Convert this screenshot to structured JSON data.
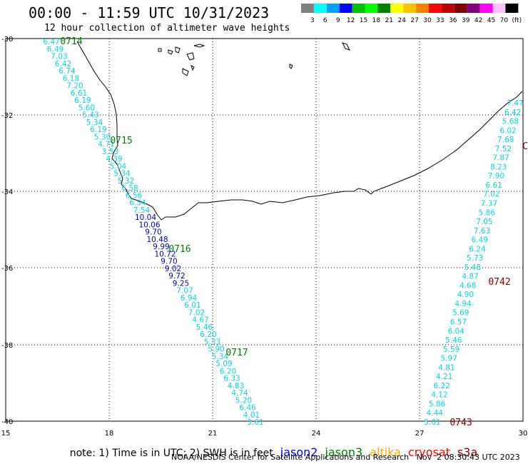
{
  "header": {
    "title": "00:00 - 11:59 UTC 10/31/2023",
    "subtitle": "12 hour collection of altimeter wave heights"
  },
  "color_scale": {
    "swatches": [
      "#808080",
      "#00ffff",
      "#00a0ff",
      "#0000ff",
      "#00c000",
      "#00ff00",
      "#008000",
      "#ffff00",
      "#ffc000",
      "#ff8000",
      "#ff0000",
      "#c00000",
      "#800000",
      "#800080",
      "#ff00ff",
      "#ffc0ff",
      "#000000"
    ],
    "labels": [
      "3",
      "6",
      "9",
      "12",
      "15",
      "18",
      "21",
      "24",
      "27",
      "30",
      "33",
      "36",
      "39",
      "42",
      "45",
      "70",
      "(ft)"
    ]
  },
  "map": {
    "lat_labels": [
      "-30",
      "-32",
      "-34",
      "-36",
      "-38",
      "-40"
    ],
    "lon_labels": [
      "15",
      "18",
      "21",
      "24",
      "27",
      "30"
    ]
  },
  "tracks": [
    {
      "satellite": "jason3",
      "time_labels": [
        "0714",
        "0715",
        "0716",
        "0717"
      ],
      "values": [
        "6.47",
        "6.49",
        "7.03",
        "6.42",
        "6.74",
        "6.18",
        "7.20",
        "6.61",
        "6.19",
        "5.60",
        "5.43",
        "5.34",
        "6.19",
        "5.30",
        "4.71",
        "3.53",
        "4.39",
        "5.04",
        "5.34",
        "5.32",
        "6.58",
        "6.56",
        "6.54",
        "7.54",
        "10.04",
        "10.06",
        "9.70",
        "10.48",
        "9.99",
        "10.72",
        "9.70",
        "9.02",
        "9.72",
        "9.25",
        "7.07",
        "6.94",
        "6.01",
        "7.02",
        "4.67",
        "5.46",
        "6.20",
        "5.33",
        "5.90",
        "5.34",
        "5.09",
        "6.20",
        "6.33",
        "4.83",
        "4.74",
        "5.20",
        "6.46",
        "4.01",
        "3.61"
      ]
    },
    {
      "satellite": "s3a",
      "time_labels": [
        "0742",
        "0743",
        "C"
      ],
      "values": [
        "7.47",
        "6.42",
        "5.68",
        "6.02",
        "7.68",
        "7.52",
        "7.87",
        "8.23",
        "7.90",
        "6.61",
        "7.02",
        "7.37",
        "5.86",
        "7.05",
        "7.63",
        "6.49",
        "6.24",
        "5.73",
        "5.48",
        "4.87",
        "4.68",
        "4.90",
        "4.94",
        "5.69",
        "6.57",
        "6.04",
        "5.46",
        "5.59",
        "5.97",
        "4.81",
        "4.21",
        "6.22",
        "4.12",
        "5.86",
        "4.44",
        "5.01"
      ]
    }
  ],
  "note": {
    "text": "note: 1) Time is in UTC; 2) SWH is in feet",
    "satellites": [
      {
        "name": "jason2",
        "color": "#0000ff"
      },
      {
        "name": "jason3",
        "color": "#008000"
      },
      {
        "name": "altika",
        "color": "#ffa500"
      },
      {
        "name": "cryosat",
        "color": "#ff0000"
      },
      {
        "name": "s3a",
        "color": "#800000"
      }
    ]
  },
  "footer": {
    "credit": "NOAA/NESDIS Center for Satellite Applications and Research   Nov  2 08:30:43 UTC 2023"
  }
}
